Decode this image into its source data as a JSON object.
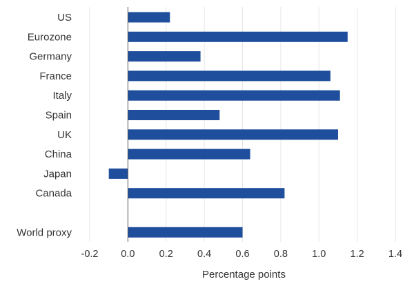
{
  "chart_data": {
    "type": "bar",
    "orientation": "horizontal",
    "title": "",
    "xlabel": "Percentage points",
    "ylabel": "",
    "xlim": [
      -0.2,
      1.4
    ],
    "xticks": [
      -0.2,
      0.0,
      0.2,
      0.4,
      0.6,
      0.8,
      1.0,
      1.2,
      1.4
    ],
    "xtick_labels": [
      "-0.2",
      "0.0",
      "0.2",
      "0.4",
      "0.6",
      "0.8",
      "1.0",
      "1.2",
      "1.4"
    ],
    "grid": true,
    "legend": "none",
    "bar_color": "#1f4e9c",
    "categories": [
      "US",
      "Eurozone",
      "Germany",
      "France",
      "Italy",
      "Spain",
      "UK",
      "China",
      "Japan",
      "Canada",
      "World proxy"
    ],
    "values": [
      0.22,
      1.15,
      0.38,
      1.06,
      1.11,
      0.48,
      1.1,
      0.64,
      -0.1,
      0.82,
      0.6
    ]
  }
}
